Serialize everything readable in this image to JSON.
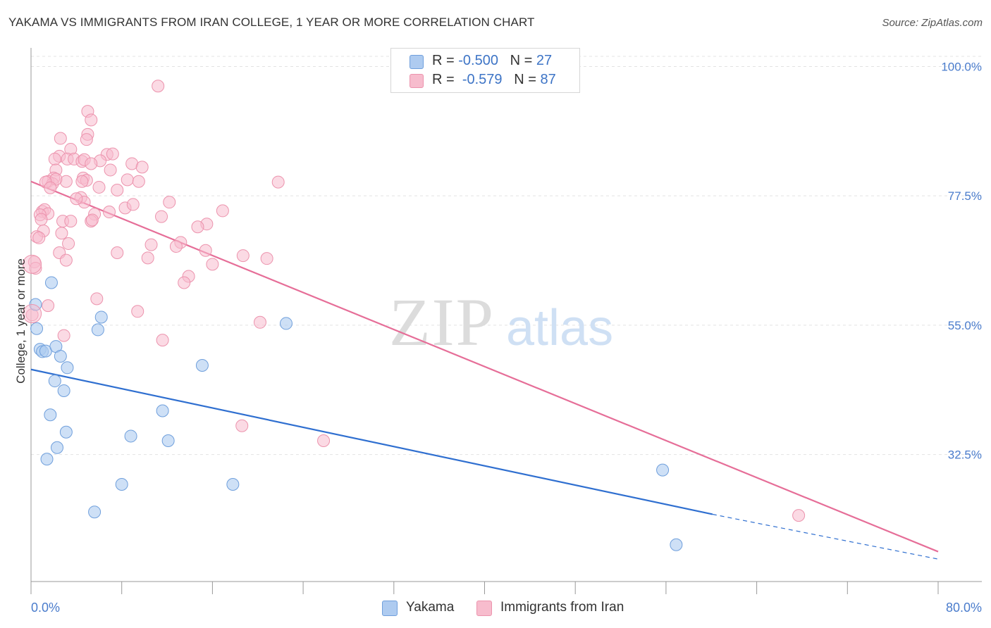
{
  "title": "YAKAMA VS IMMIGRANTS FROM IRAN COLLEGE, 1 YEAR OR MORE CORRELATION CHART",
  "source": "Source: ZipAtlas.com",
  "watermark": {
    "zip": "ZIP",
    "atlas": "atlas"
  },
  "legend": {
    "rows": [
      {
        "r_label": "R = ",
        "r_value": "-0.500",
        "n_label": "N = ",
        "n_value": "27"
      },
      {
        "r_label": "R = ",
        "r_value": "-0.579",
        "n_label": "N = ",
        "n_value": "87"
      }
    ]
  },
  "colors": {
    "yakama_fill": "#aecbf0",
    "yakama_stroke": "#6f9fdc",
    "yakama_line": "#2f6fd0",
    "iran_fill": "#f7bccd",
    "iran_stroke": "#ec93ad",
    "iran_line": "#e66e98",
    "tick_label": "#4a7ccc",
    "grid": "#e3e3e3"
  },
  "chart_data": {
    "type": "scatter",
    "title": "YAKAMA VS IMMIGRANTS FROM IRAN COLLEGE, 1 YEAR OR MORE CORRELATION CHART",
    "xlabel": "",
    "ylabel": "College, 1 year or more",
    "xlim": [
      0,
      80
    ],
    "ylim": [
      10.4,
      103
    ],
    "x_tick_labels": [
      "0.0%",
      "80.0%"
    ],
    "y_ticks": [
      {
        "value": 100,
        "label": "100.0%"
      },
      {
        "value": 77.5,
        "label": "77.5%"
      },
      {
        "value": 55,
        "label": "55.0%"
      },
      {
        "value": 32.5,
        "label": "32.5%"
      }
    ],
    "grid": true,
    "legend_position": "top-center",
    "series": [
      {
        "name": "Yakama",
        "points": [
          [
            0.4,
            58.6
          ],
          [
            0.5,
            54.4
          ],
          [
            0.8,
            50.8
          ],
          [
            1.0,
            50.4
          ],
          [
            1.3,
            50.5
          ],
          [
            1.8,
            62.4
          ],
          [
            2.2,
            51.3
          ],
          [
            2.1,
            45.3
          ],
          [
            2.6,
            49.6
          ],
          [
            3.2,
            47.6
          ],
          [
            2.9,
            43.6
          ],
          [
            1.7,
            39.4
          ],
          [
            3.1,
            36.4
          ],
          [
            2.3,
            33.7
          ],
          [
            1.4,
            31.7
          ],
          [
            6.2,
            56.4
          ],
          [
            5.9,
            54.2
          ],
          [
            8.8,
            35.7
          ],
          [
            11.6,
            40.1
          ],
          [
            12.1,
            34.9
          ],
          [
            15.1,
            48.0
          ],
          [
            8.0,
            27.3
          ],
          [
            17.8,
            27.3
          ],
          [
            5.6,
            22.5
          ],
          [
            22.5,
            55.3
          ],
          [
            55.7,
            29.8
          ],
          [
            56.9,
            16.8
          ]
        ],
        "trend": {
          "x": [
            0,
            60.1
          ],
          "y": [
            47.3,
            22.1
          ]
        },
        "trend_dashed": {
          "x": [
            60.1,
            80
          ],
          "y": [
            22.1,
            14.3
          ]
        }
      },
      {
        "name": "Immigrants from Iran",
        "points": [
          [
            11.2,
            96.6
          ],
          [
            5.0,
            92.2
          ],
          [
            5.3,
            90.7
          ],
          [
            5.0,
            88.2
          ],
          [
            2.6,
            87.5
          ],
          [
            4.9,
            87.3
          ],
          [
            3.5,
            85.6
          ],
          [
            2.5,
            84.4
          ],
          [
            2.1,
            83.9
          ],
          [
            3.2,
            83.9
          ],
          [
            3.8,
            83.9
          ],
          [
            4.5,
            83.5
          ],
          [
            4.7,
            83.8
          ],
          [
            6.7,
            84.7
          ],
          [
            7.2,
            84.8
          ],
          [
            6.1,
            83.6
          ],
          [
            5.3,
            83.1
          ],
          [
            8.9,
            83.1
          ],
          [
            9.8,
            82.5
          ],
          [
            2.2,
            82.0
          ],
          [
            7.0,
            82.0
          ],
          [
            2.0,
            80.6
          ],
          [
            3.1,
            80.0
          ],
          [
            4.6,
            80.6
          ],
          [
            4.9,
            80.2
          ],
          [
            1.5,
            80.0
          ],
          [
            1.9,
            79.6
          ],
          [
            2.2,
            80.4
          ],
          [
            4.5,
            80.0
          ],
          [
            8.5,
            80.3
          ],
          [
            9.5,
            80.0
          ],
          [
            21.8,
            79.9
          ],
          [
            1.3,
            79.9
          ],
          [
            1.7,
            78.9
          ],
          [
            7.6,
            78.5
          ],
          [
            4.4,
            77.2
          ],
          [
            4.7,
            76.4
          ],
          [
            12.2,
            76.4
          ],
          [
            8.3,
            75.4
          ],
          [
            6.9,
            74.7
          ],
          [
            1.0,
            74.8
          ],
          [
            1.2,
            75.1
          ],
          [
            1.5,
            74.4
          ],
          [
            0.8,
            74.2
          ],
          [
            5.6,
            74.3
          ],
          [
            16.9,
            74.9
          ],
          [
            11.5,
            73.9
          ],
          [
            0.9,
            73.4
          ],
          [
            2.8,
            73.1
          ],
          [
            3.5,
            73.1
          ],
          [
            5.3,
            73.1
          ],
          [
            5.4,
            73.3
          ],
          [
            15.5,
            72.6
          ],
          [
            14.7,
            72.1
          ],
          [
            1.1,
            71.4
          ],
          [
            2.7,
            71.0
          ],
          [
            0.5,
            70.4
          ],
          [
            0.7,
            70.2
          ],
          [
            13.2,
            69.4
          ],
          [
            3.3,
            69.2
          ],
          [
            10.6,
            69.0
          ],
          [
            12.8,
            68.7
          ],
          [
            15.4,
            68.0
          ],
          [
            2.5,
            67.6
          ],
          [
            7.6,
            67.6
          ],
          [
            18.7,
            67.1
          ],
          [
            10.3,
            66.7
          ],
          [
            3.1,
            66.3
          ],
          [
            20.8,
            66.6
          ],
          [
            0.3,
            66.0
          ],
          [
            16.0,
            65.6
          ],
          [
            0.4,
            64.9
          ],
          [
            13.9,
            63.5
          ],
          [
            13.5,
            62.4
          ],
          [
            5.8,
            59.6
          ],
          [
            1.5,
            58.4
          ],
          [
            9.4,
            57.4
          ],
          [
            20.2,
            55.5
          ],
          [
            2.9,
            53.2
          ],
          [
            11.6,
            52.4
          ],
          [
            18.6,
            37.5
          ],
          [
            25.8,
            34.9
          ],
          [
            67.7,
            21.9
          ],
          [
            0.1,
            56.8
          ],
          [
            4.0,
            77.0
          ],
          [
            9.0,
            76.0
          ],
          [
            6.0,
            79.0
          ]
        ],
        "trend": {
          "x": [
            0,
            80
          ],
          "y": [
            80.0,
            15.6
          ]
        }
      }
    ]
  },
  "bottom_legend": [
    {
      "label": "Yakama"
    },
    {
      "label": "Immigrants from Iran"
    }
  ]
}
